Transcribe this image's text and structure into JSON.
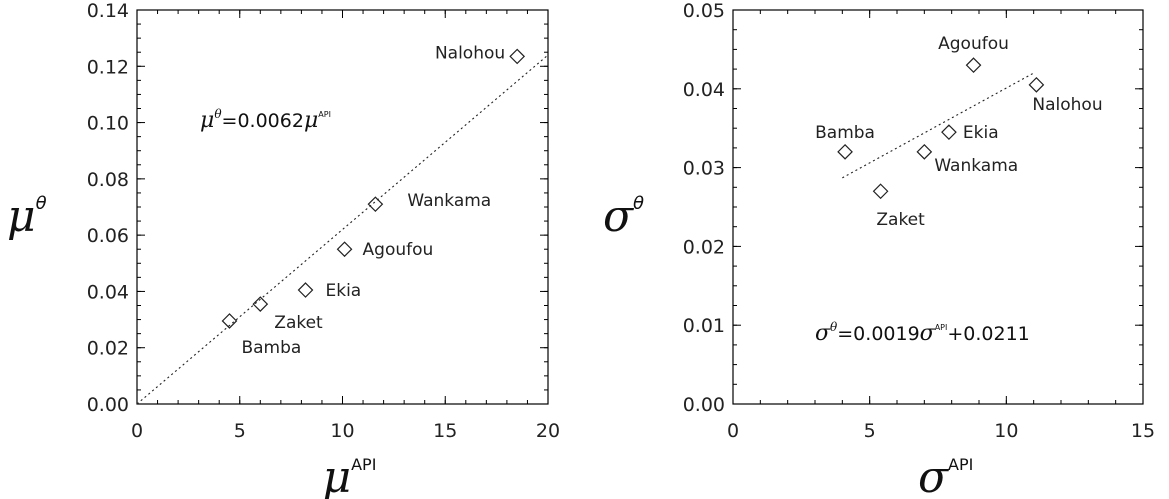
{
  "chart_data": [
    {
      "type": "scatter",
      "xlabel": {
        "symbol": "μ",
        "sup": "API"
      },
      "ylabel": {
        "symbol": "μ",
        "sup": "θ"
      },
      "xlim": [
        0,
        20
      ],
      "ylim": [
        0,
        0.14
      ],
      "xticks": [
        "0",
        "5",
        "10",
        "15",
        "20"
      ],
      "xtick_values": [
        0,
        5,
        10,
        15,
        20
      ],
      "yticks": [
        "0.00",
        "0.02",
        "0.04",
        "0.06",
        "0.08",
        "0.10",
        "0.12",
        "0.14"
      ],
      "ytick_values": [
        0,
        0.02,
        0.04,
        0.06,
        0.08,
        0.1,
        0.12,
        0.14
      ],
      "points": [
        {
          "name": "Bamba",
          "x": 4.5,
          "y": 0.0295
        },
        {
          "name": "Zaket",
          "x": 6.0,
          "y": 0.0355
        },
        {
          "name": "Ekia",
          "x": 8.2,
          "y": 0.0405
        },
        {
          "name": "Agoufou",
          "x": 10.1,
          "y": 0.055
        },
        {
          "name": "Wankama",
          "x": 11.6,
          "y": 0.071
        },
        {
          "name": "Nalohou",
          "x": 18.5,
          "y": 0.1235
        }
      ],
      "fit": {
        "slope": 0.0062,
        "intercept": 0,
        "x_range": [
          0,
          20
        ]
      },
      "equation": {
        "lhs_symbol": "μ",
        "lhs_sup": "θ",
        "mid": "=0.0062",
        "rhs_symbol": "μ",
        "rhs_sup": "API",
        "tail": ""
      }
    },
    {
      "type": "scatter",
      "xlabel": {
        "symbol": "σ",
        "sup": "API"
      },
      "ylabel": {
        "symbol": "σ",
        "sup": "θ"
      },
      "xlim": [
        0,
        15
      ],
      "ylim": [
        0,
        0.05
      ],
      "xticks": [
        "0",
        "5",
        "10",
        "15"
      ],
      "xtick_values": [
        0,
        5,
        10,
        15
      ],
      "yticks": [
        "0.00",
        "0.01",
        "0.02",
        "0.03",
        "0.04",
        "0.05"
      ],
      "ytick_values": [
        0,
        0.01,
        0.02,
        0.03,
        0.04,
        0.05
      ],
      "points": [
        {
          "name": "Bamba",
          "x": 4.1,
          "y": 0.032
        },
        {
          "name": "Zaket",
          "x": 5.4,
          "y": 0.027
        },
        {
          "name": "Wankama",
          "x": 7.0,
          "y": 0.032
        },
        {
          "name": "Ekia",
          "x": 7.9,
          "y": 0.0345
        },
        {
          "name": "Agoufou",
          "x": 8.8,
          "y": 0.043
        },
        {
          "name": "Nalohou",
          "x": 11.1,
          "y": 0.0405
        }
      ],
      "fit": {
        "slope": 0.0019,
        "intercept": 0.0211,
        "x_range": [
          4.0,
          11.0
        ]
      },
      "equation": {
        "lhs_symbol": "σ",
        "lhs_sup": "θ",
        "mid": "=0.0019",
        "rhs_symbol": "σ",
        "rhs_sup": "API",
        "tail": "+0.0211"
      }
    }
  ]
}
